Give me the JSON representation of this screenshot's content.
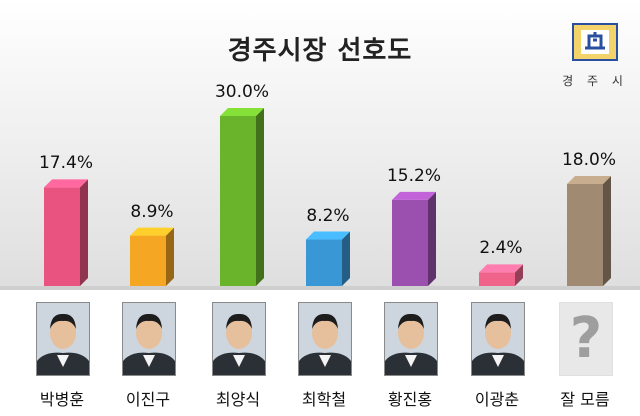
{
  "chart_data": {
    "type": "bar",
    "title": "경주시장 선호도",
    "categories": [
      "박병훈",
      "이진구",
      "최양식",
      "최학철",
      "황진홍",
      "이광춘",
      "잘 모름"
    ],
    "values": [
      17.4,
      8.9,
      30.0,
      8.2,
      15.2,
      2.4,
      18.0
    ],
    "value_labels": [
      "17.4%",
      "8.9%",
      "30.0%",
      "8.2%",
      "15.2%",
      "2.4%",
      "18.0%"
    ],
    "colors": [
      "#e8547f",
      "#f5a623",
      "#6ab42c",
      "#3a97d6",
      "#9b4fae",
      "#f0648c",
      "#a18a72"
    ],
    "xlabel": "",
    "ylabel": "",
    "ylim": [
      0,
      30
    ],
    "grid": false,
    "legend": "none"
  },
  "logo": {
    "text": "경 주 시",
    "icon": "gyeongju-city-emblem-icon"
  },
  "photos": [
    {
      "icon": "candidate-photo-icon"
    },
    {
      "icon": "candidate-photo-icon"
    },
    {
      "icon": "candidate-photo-icon"
    },
    {
      "icon": "candidate-photo-icon"
    },
    {
      "icon": "candidate-photo-icon"
    },
    {
      "icon": "candidate-photo-icon"
    },
    {
      "icon": "question-mark-icon",
      "glyph": "?"
    }
  ]
}
